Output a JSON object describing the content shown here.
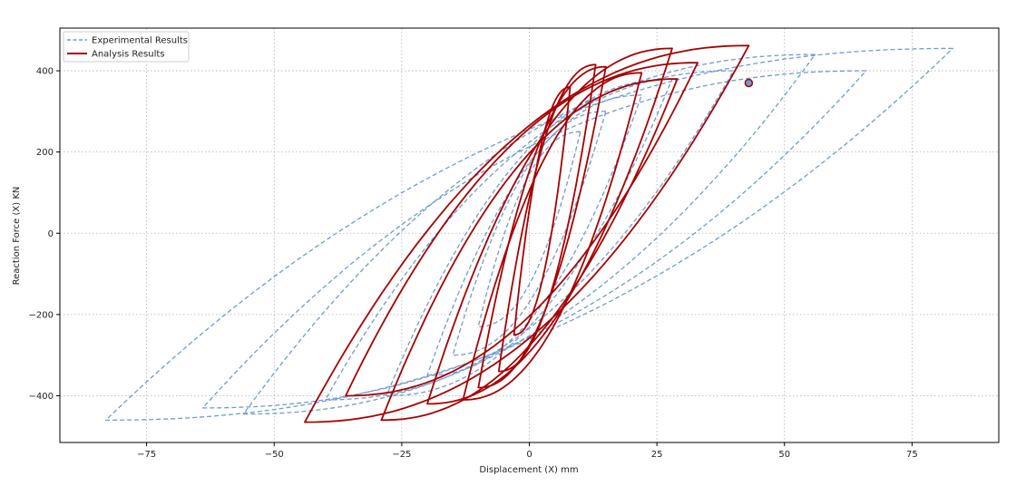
{
  "chart_data": {
    "type": "line",
    "xlabel": "Displacement (X) mm",
    "ylabel": "Reaction Force (X) KN",
    "xlim": [
      -92,
      92
    ],
    "ylim": [
      -515,
      505
    ],
    "xticks": [
      -75,
      -50,
      -25,
      0,
      25,
      50,
      75
    ],
    "xtick_labels": [
      "−75",
      "−50",
      "−25",
      "0",
      "25",
      "50",
      "75"
    ],
    "yticks": [
      -400,
      -200,
      0,
      200,
      400
    ],
    "ytick_labels": [
      "−400",
      "−200",
      "0",
      "200",
      "400"
    ],
    "grid": true,
    "legend_position": "top-left",
    "series": [
      {
        "name": "Experimental Results",
        "color": "#6f9bd1",
        "style": "dashed",
        "loops": [
          {
            "x_min": -10,
            "x_max": 10,
            "f_min": -230,
            "f_max": 250
          },
          {
            "x_min": -15,
            "x_max": 15,
            "f_min": -300,
            "f_max": 300
          },
          {
            "x_min": -20,
            "x_max": 22,
            "f_min": -350,
            "f_max": 340
          },
          {
            "x_min": -28,
            "x_max": 28,
            "f_min": -400,
            "f_max": 380
          },
          {
            "x_min": -40,
            "x_max": 40,
            "f_min": -410,
            "f_max": 400
          },
          {
            "x_min": -56,
            "x_max": 56,
            "f_min": -445,
            "f_max": 440
          },
          {
            "x_min": -64,
            "x_max": 66,
            "f_min": -430,
            "f_max": 400
          },
          {
            "x_min": -83,
            "x_max": 83,
            "f_min": -460,
            "f_max": 455
          }
        ]
      },
      {
        "name": "Analysis Results",
        "color": "#a80000",
        "style": "solid",
        "loops": [
          {
            "x_min": -3,
            "x_max": 8,
            "f_min": -250,
            "f_max": 360
          },
          {
            "x_min": -6,
            "x_max": 13,
            "f_min": -340,
            "f_max": 415
          },
          {
            "x_min": -10,
            "x_max": 15,
            "f_min": -380,
            "f_max": 410
          },
          {
            "x_min": -13,
            "x_max": 22,
            "f_min": -410,
            "f_max": 395
          },
          {
            "x_min": -20,
            "x_max": 28,
            "f_min": -420,
            "f_max": 455
          },
          {
            "x_min": -29,
            "x_max": 29,
            "f_min": -460,
            "f_max": 380
          },
          {
            "x_min": -36,
            "x_max": 33,
            "f_min": -400,
            "f_max": 420
          },
          {
            "x_min": -44,
            "x_max": 43,
            "f_min": -465,
            "f_max": 462
          }
        ],
        "end_point": {
          "x": 43,
          "y": 370
        }
      }
    ]
  }
}
